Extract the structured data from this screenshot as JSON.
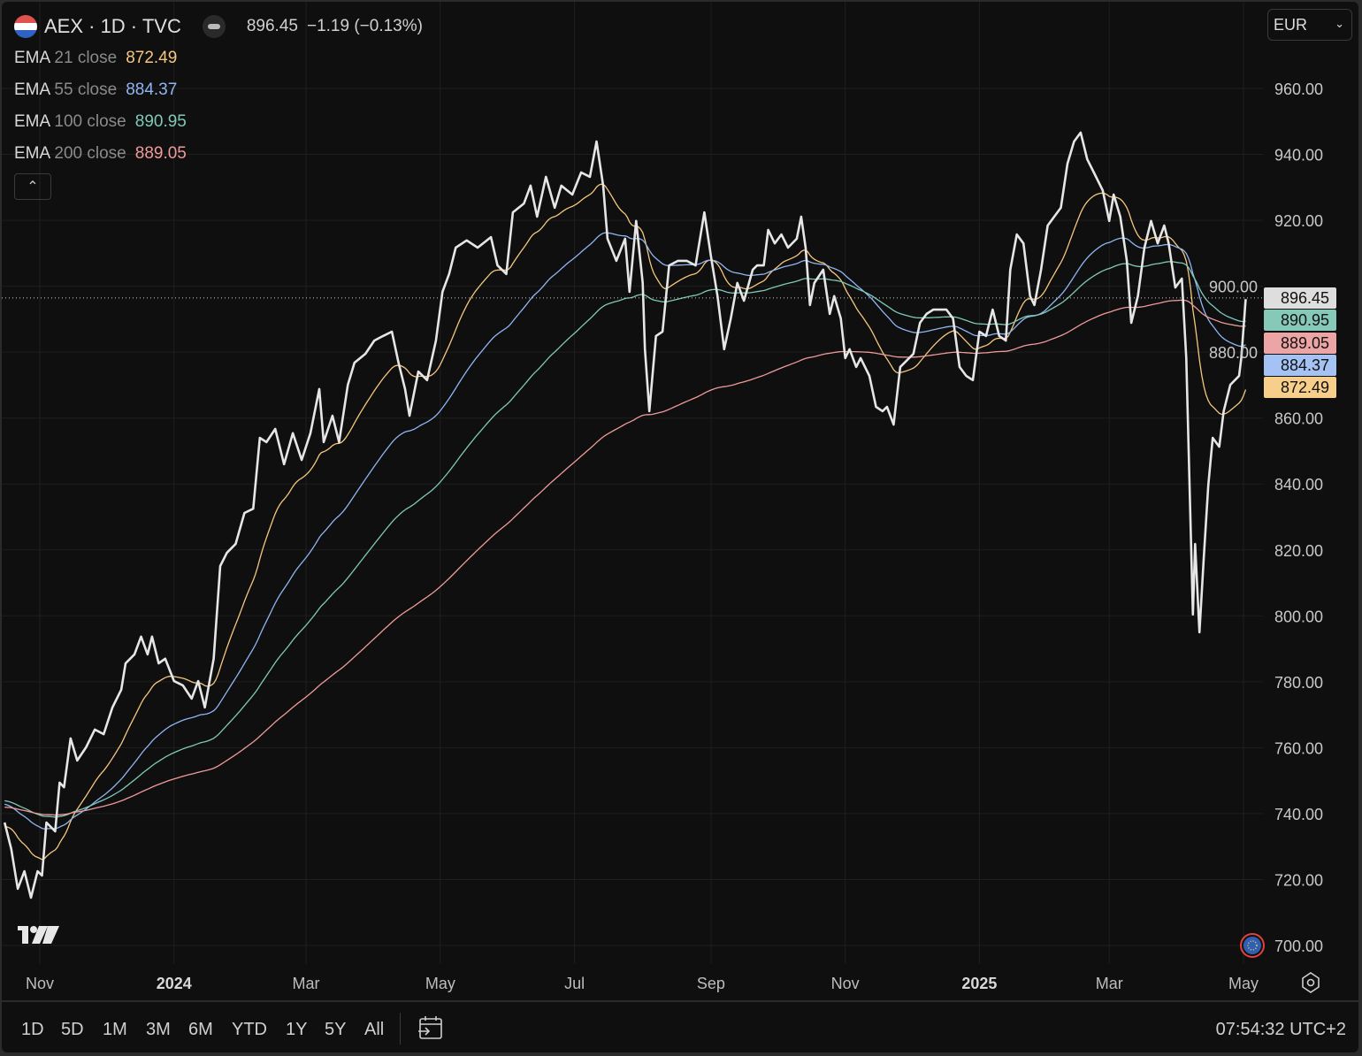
{
  "header": {
    "symbol_title": "AEX · 1D · TVC",
    "last_price": "896.45",
    "change": "−1.19 (−0.13%)",
    "flag_colors": [
      "#e0524f",
      "#ffffff",
      "#2f62c2"
    ]
  },
  "indicators": [
    {
      "name": "EMA",
      "params": "21 close",
      "value": "872.49",
      "color": "#f5c77e"
    },
    {
      "name": "EMA",
      "params": "55 close",
      "value": "884.37",
      "color": "#8fb5f2"
    },
    {
      "name": "EMA",
      "params": "100 close",
      "value": "890.95",
      "color": "#7fc9b8"
    },
    {
      "name": "EMA",
      "params": "200 close",
      "value": "889.05",
      "color": "#ef9a9a"
    }
  ],
  "currency": "EUR",
  "price_badges": [
    {
      "value": "896.45",
      "color": "#dedede"
    },
    {
      "value": "890.95",
      "color": "#86c9b9"
    },
    {
      "value": "889.05",
      "color": "#eda4a4"
    },
    {
      "value": "884.37",
      "color": "#a4c2f4"
    },
    {
      "value": "872.49",
      "color": "#f7cf8b"
    }
  ],
  "toolbar": {
    "ranges": [
      "1D",
      "5D",
      "1M",
      "3M",
      "6M",
      "YTD",
      "1Y",
      "5Y",
      "All"
    ],
    "clock": "07:54:32 UTC+2"
  },
  "chart_data": {
    "type": "line",
    "title": "AEX · 1D · TVC",
    "x_unit": "days since 2023-11-01",
    "ylabel": "EUR",
    "ylim": [
      700,
      960
    ],
    "y_ticks": [
      "960.00",
      "940.00",
      "920.00",
      "900.00",
      "880.00",
      "860.00",
      "840.00",
      "820.00",
      "800.00",
      "780.00",
      "760.00",
      "740.00",
      "720.00",
      "700.00"
    ],
    "x_ticks": [
      {
        "label": "Nov",
        "day": 0,
        "bold": false
      },
      {
        "label": "2024",
        "day": 61,
        "bold": true
      },
      {
        "label": "Mar",
        "day": 121,
        "bold": false
      },
      {
        "label": "May",
        "day": 182,
        "bold": false
      },
      {
        "label": "Jul",
        "day": 243,
        "bold": false
      },
      {
        "label": "Sep",
        "day": 305,
        "bold": false
      },
      {
        "label": "Nov",
        "day": 366,
        "bold": false
      },
      {
        "label": "2025",
        "day": 427,
        "bold": true
      },
      {
        "label": "Mar",
        "day": 486,
        "bold": false
      },
      {
        "label": "May",
        "day": 547,
        "bold": false
      }
    ],
    "grid": true,
    "last_value": 896.45,
    "series": [
      {
        "name": "AEX close",
        "color": "#e6e6e6",
        "x": [
          -16,
          -13,
          -10,
          -7,
          -4,
          -1,
          1,
          3,
          7,
          9,
          11,
          14,
          17,
          21,
          25,
          29,
          33,
          37,
          39,
          43,
          46,
          49,
          51,
          54,
          57,
          61,
          65,
          69,
          72,
          75,
          79,
          82,
          85,
          89,
          93,
          97,
          100,
          103,
          107,
          111,
          115,
          119,
          123,
          127,
          129,
          133,
          136,
          140,
          143,
          148,
          152,
          156,
          160,
          163,
          166,
          168,
          172,
          176,
          180,
          183,
          186,
          189,
          194,
          199,
          205,
          208,
          212,
          215,
          220,
          223,
          226,
          230,
          234,
          237,
          242,
          246,
          250,
          253,
          256,
          258,
          262,
          266,
          268,
          271,
          274,
          275,
          277,
          280,
          283,
          286,
          290,
          294,
          298,
          302,
          305,
          308,
          311,
          314,
          317,
          320,
          324,
          326,
          329,
          331,
          334,
          337,
          340,
          344,
          346,
          348,
          350,
          352,
          356,
          359,
          361,
          364,
          366,
          368,
          371,
          373,
          377,
          380,
          383,
          385,
          388,
          391,
          393,
          397,
          400,
          403,
          406,
          409,
          412,
          415,
          418,
          421,
          424,
          427,
          430,
          433,
          436,
          439,
          441,
          444,
          447,
          450,
          452,
          455,
          458,
          461,
          464,
          467,
          470,
          473,
          476,
          479,
          483,
          486,
          488,
          491,
          494,
          496,
          499,
          502,
          505,
          508,
          511,
          513,
          516,
          519,
          521,
          524,
          525,
          527,
          529,
          531,
          533,
          536,
          538,
          541,
          545,
          546,
          548
        ],
        "y": [
          737.3,
          729.3,
          717.2,
          722.5,
          714.5,
          722.5,
          721.2,
          737.3,
          734.6,
          749.4,
          748.0,
          762.8,
          756.1,
          760.1,
          765.5,
          764.1,
          772.2,
          777.6,
          785.6,
          788.3,
          793.7,
          788.3,
          793.7,
          785.6,
          787.0,
          780.2,
          778.9,
          774.9,
          780.2,
          772.2,
          787.0,
          815.1,
          819.1,
          821.8,
          831.2,
          832.5,
          854.0,
          852.7,
          856.7,
          846.0,
          855.4,
          847.3,
          855.4,
          868.8,
          852.7,
          860.7,
          852.7,
          870.1,
          876.8,
          879.5,
          883.5,
          884.9,
          886.2,
          876.8,
          868.8,
          860.7,
          874.1,
          871.5,
          883.5,
          898.3,
          903.7,
          911.7,
          913.9,
          911.7,
          914.9,
          906.3,
          903.7,
          922.4,
          925.1,
          930.5,
          921.1,
          933.2,
          923.8,
          930.5,
          927.8,
          934.5,
          933.2,
          943.9,
          930.5,
          914.4,
          907.7,
          914.4,
          898.3,
          919.8,
          901.0,
          880.9,
          862.1,
          884.9,
          886.2,
          906.3,
          907.7,
          907.7,
          906.3,
          922.4,
          909.0,
          897.0,
          880.9,
          890.2,
          901.0,
          895.6,
          905.0,
          906.3,
          906.3,
          917.1,
          913.0,
          915.7,
          911.7,
          914.4,
          921.1,
          911.7,
          894.3,
          901.0,
          905.0,
          891.6,
          897.0,
          890.2,
          878.2,
          880.9,
          875.5,
          878.2,
          872.8,
          863.4,
          862.1,
          863.4,
          858.0,
          875.5,
          876.8,
          879.5,
          888.9,
          891.6,
          892.9,
          892.9,
          892.9,
          890.2,
          875.5,
          872.8,
          871.5,
          886.2,
          884.9,
          892.9,
          884.9,
          883.5,
          905.0,
          915.7,
          913.0,
          897.0,
          894.3,
          905.0,
          918.4,
          921.1,
          923.8,
          937.2,
          943.9,
          946.6,
          938.5,
          934.5,
          929.1,
          919.8,
          927.8,
          921.1,
          907.7,
          888.9,
          897.0,
          911.7,
          919.8,
          913.0,
          918.4,
          913.0,
          899.6,
          902.3,
          878.2,
          800.4,
          821.8,
          795.0,
          818.1,
          839.6,
          854.0,
          851.3,
          862.1,
          870.1,
          872.8,
          878.2,
          896.1
        ]
      }
    ],
    "ema": [
      {
        "name": "EMA 21 close",
        "period": 21,
        "initial": 736,
        "color": "#f5c77e"
      },
      {
        "name": "EMA 55 close",
        "period": 55,
        "initial": 743,
        "color": "#8fb5f2"
      },
      {
        "name": "EMA 100 close",
        "period": 100,
        "initial": 744,
        "color": "#7fc9b8"
      },
      {
        "name": "EMA 200 close",
        "period": 200,
        "initial": 742,
        "color": "#ef9a9a"
      }
    ]
  }
}
